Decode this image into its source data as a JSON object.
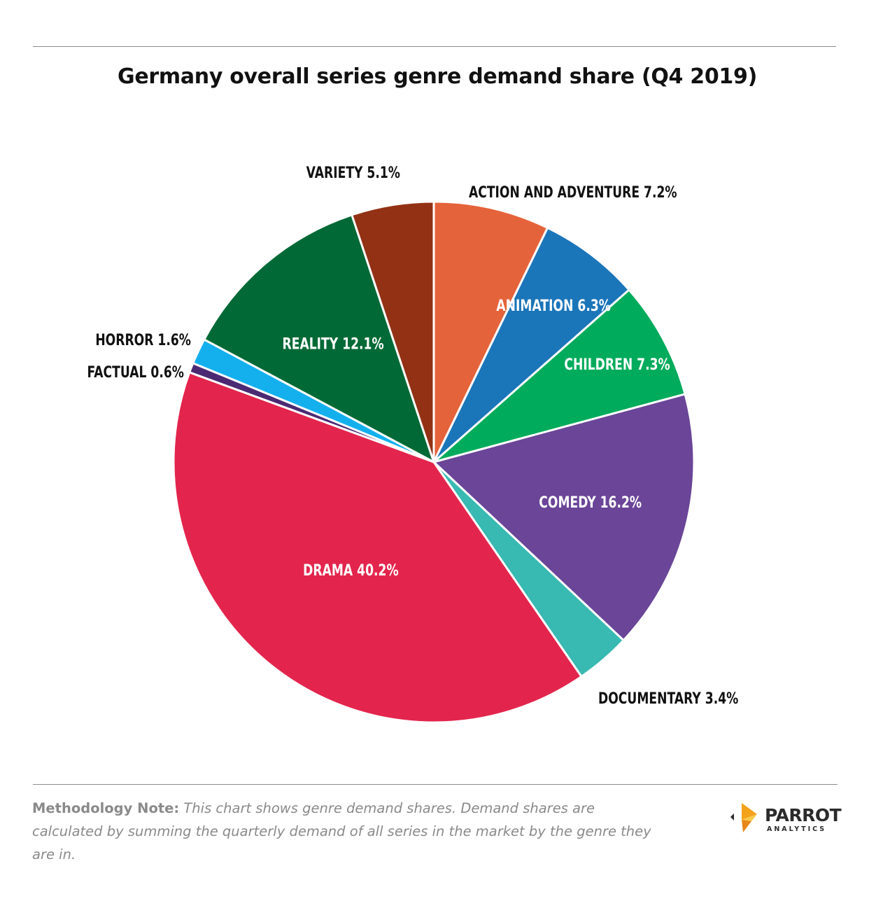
{
  "chart_data": {
    "type": "pie",
    "title": "Germany overall series genre demand share (Q4 2019)",
    "unit": "%",
    "slices": [
      {
        "label": "ACTION AND ADVENTURE",
        "value": 7.2,
        "color": "#e5633a",
        "label_text": "ACTION AND ADVENTURE 7.2%",
        "label_inside": false,
        "label_color": "#111111"
      },
      {
        "label": "ANIMATION",
        "value": 6.3,
        "color": "#1b75b9",
        "label_text": "ANIMATION 6.3%",
        "label_inside": true,
        "label_color": "#ffffff"
      },
      {
        "label": "CHILDREN",
        "value": 7.3,
        "color": "#00ab5b",
        "label_text": "CHILDREN 7.3%",
        "label_inside": true,
        "label_color": "#ffffff"
      },
      {
        "label": "COMEDY",
        "value": 16.2,
        "color": "#6a4598",
        "label_text": "COMEDY 16.2%",
        "label_inside": true,
        "label_color": "#ffffff"
      },
      {
        "label": "DOCUMENTARY",
        "value": 3.4,
        "color": "#38b9b2",
        "label_text": "DOCUMENTARY 3.4%",
        "label_inside": false,
        "label_color": "#111111"
      },
      {
        "label": "DRAMA",
        "value": 40.2,
        "color": "#e3254d",
        "label_text": "DRAMA 40.2%",
        "label_inside": true,
        "label_color": "#ffffff"
      },
      {
        "label": "FACTUAL",
        "value": 0.6,
        "color": "#4b2a73",
        "label_text": "FACTUAL 0.6%",
        "label_inside": false,
        "label_color": "#111111"
      },
      {
        "label": "HORROR",
        "value": 1.6,
        "color": "#14b0ee",
        "label_text": "HORROR 1.6%",
        "label_inside": false,
        "label_color": "#111111"
      },
      {
        "label": "REALITY",
        "value": 12.1,
        "color": "#006935",
        "label_text": "REALITY 12.1%",
        "label_inside": true,
        "label_color": "#ffffff"
      },
      {
        "label": "VARIETY",
        "value": 5.1,
        "color": "#933114",
        "label_text": "VARIETY 5.1%",
        "label_inside": false,
        "label_color": "#111111"
      }
    ],
    "start": "12 o'clock",
    "direction": "clockwise"
  },
  "footer": {
    "note_label": "Methodology Note:",
    "note_text": "This chart shows genre demand shares. Demand shares are calculated by summing the quarterly demand of all series in the market by the genre they are in."
  },
  "logo": {
    "word": "PARROT",
    "sub": "ANALYTICS"
  }
}
